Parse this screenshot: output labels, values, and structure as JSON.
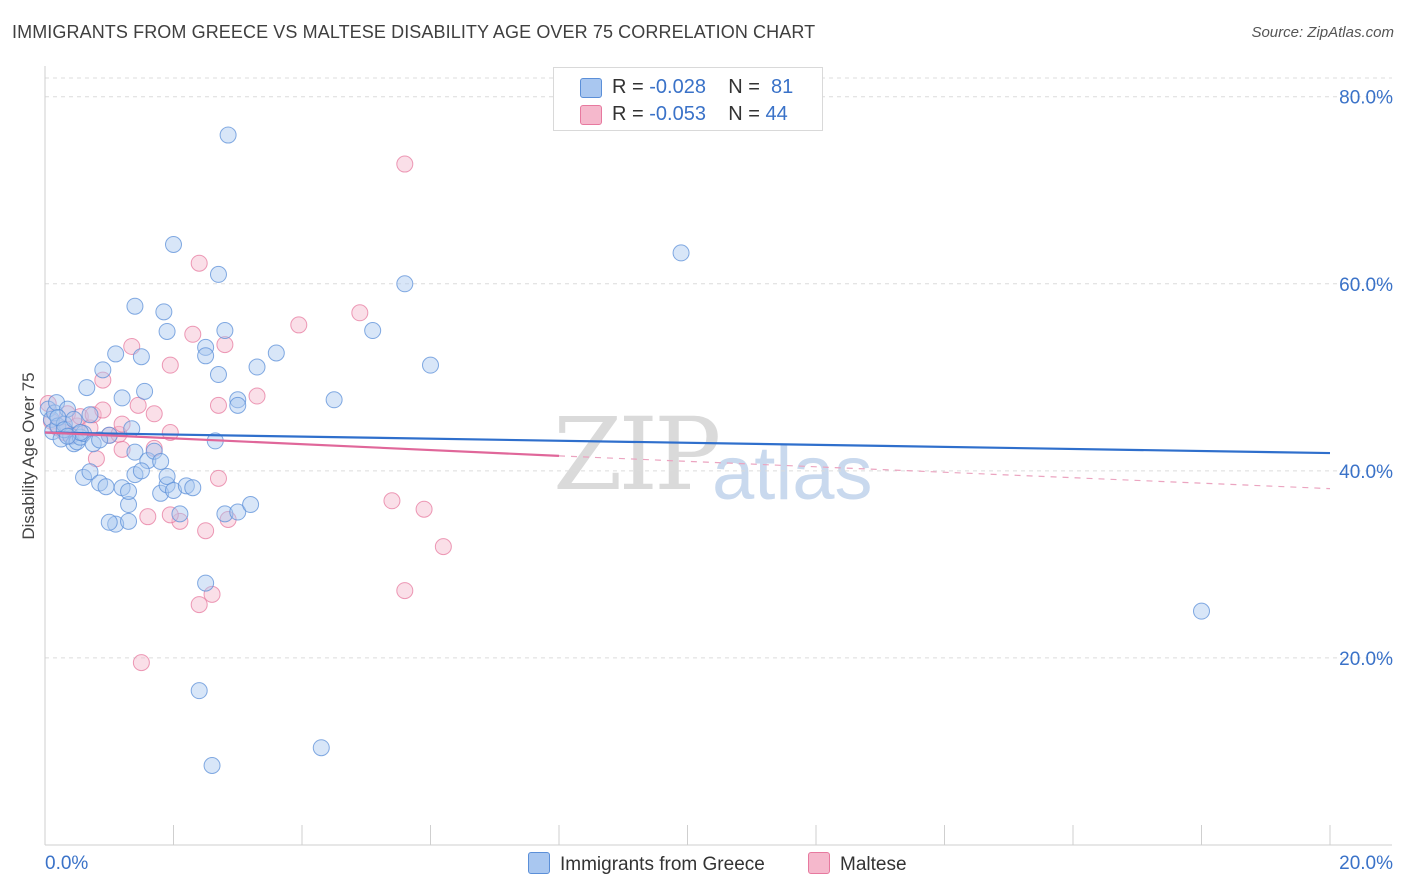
{
  "title": "IMMIGRANTS FROM GREECE VS MALTESE DISABILITY AGE OVER 75 CORRELATION CHART",
  "source": "Source: ZipAtlas.com",
  "watermark": {
    "zip": "ZIP",
    "atlas": "atlas"
  },
  "legend_top": [
    {
      "r_label": "R =",
      "r_value": "-0.028",
      "n_label": "N =",
      "n_value": "81",
      "color": "#a9c7f0"
    },
    {
      "r_label": "R =",
      "r_value": "-0.053",
      "n_label": "N =",
      "n_value": "44",
      "color": "#f5b8cc"
    }
  ],
  "chart_data": {
    "type": "scatter",
    "title": "IMMIGRANTS FROM GREECE VS MALTESE DISABILITY AGE OVER 75 CORRELATION CHART",
    "xlabel": "",
    "ylabel": "Disability Age Over 75",
    "xlim": [
      0,
      20
    ],
    "ylim": [
      0,
      82
    ],
    "x_tick_labels": [
      "0.0%",
      "20.0%"
    ],
    "y_ticks": [
      20,
      40,
      60,
      80
    ],
    "y_tick_labels": [
      "20.0%",
      "40.0%",
      "60.0%",
      "80.0%"
    ],
    "grid": true,
    "legend_position": "bottom",
    "series": [
      {
        "name": "Immigrants from Greece",
        "color": "#5b8fd8",
        "fill": "#a9c7f0",
        "trend": {
          "x": [
            0,
            20
          ],
          "y": [
            44.1,
            41.9
          ],
          "dashed_from": null
        },
        "points": [
          [
            0.05,
            46.6
          ],
          [
            0.1,
            45.5
          ],
          [
            0.12,
            44.2
          ],
          [
            0.15,
            46.2
          ],
          [
            0.18,
            47.3
          ],
          [
            0.2,
            44.8
          ],
          [
            0.25,
            43.4
          ],
          [
            0.3,
            45.0
          ],
          [
            0.35,
            46.6
          ],
          [
            0.4,
            43.7
          ],
          [
            0.45,
            42.9
          ],
          [
            0.5,
            43.1
          ],
          [
            0.55,
            43.6
          ],
          [
            0.6,
            44.0
          ],
          [
            0.7,
            46.0
          ],
          [
            0.75,
            42.9
          ],
          [
            0.9,
            50.8
          ],
          [
            0.65,
            48.9
          ],
          [
            1.1,
            52.5
          ],
          [
            1.2,
            47.8
          ],
          [
            1.35,
            44.5
          ],
          [
            1.5,
            52.2
          ],
          [
            1.55,
            48.5
          ],
          [
            1.4,
            42.0
          ],
          [
            0.6,
            39.3
          ],
          [
            0.7,
            39.9
          ],
          [
            0.85,
            38.7
          ],
          [
            0.95,
            38.3
          ],
          [
            1.2,
            38.2
          ],
          [
            1.3,
            36.4
          ],
          [
            1.3,
            37.8
          ],
          [
            1.4,
            39.6
          ],
          [
            1.1,
            34.3
          ],
          [
            1.0,
            34.5
          ],
          [
            1.3,
            34.6
          ],
          [
            1.6,
            41.1
          ],
          [
            1.7,
            42.1
          ],
          [
            1.8,
            41.0
          ],
          [
            1.8,
            37.6
          ],
          [
            1.9,
            38.5
          ],
          [
            1.9,
            39.4
          ],
          [
            2.0,
            37.9
          ],
          [
            2.1,
            35.4
          ],
          [
            2.2,
            38.4
          ],
          [
            2.3,
            38.2
          ],
          [
            1.4,
            57.6
          ],
          [
            1.85,
            57.0
          ],
          [
            1.9,
            54.9
          ],
          [
            2.0,
            64.2
          ],
          [
            2.5,
            53.2
          ],
          [
            2.5,
            52.3
          ],
          [
            2.7,
            61.0
          ],
          [
            2.8,
            55.0
          ],
          [
            2.7,
            50.3
          ],
          [
            2.65,
            43.2
          ],
          [
            2.8,
            35.4
          ],
          [
            3.0,
            47.6
          ],
          [
            3.0,
            35.6
          ],
          [
            3.2,
            36.4
          ],
          [
            3.3,
            51.1
          ],
          [
            3.6,
            52.6
          ],
          [
            3.0,
            47.0
          ],
          [
            4.5,
            47.6
          ],
          [
            5.1,
            55.0
          ],
          [
            5.6,
            60.0
          ],
          [
            6.0,
            51.3
          ],
          [
            2.85,
            75.9
          ],
          [
            2.5,
            28.0
          ],
          [
            2.4,
            16.5
          ],
          [
            2.6,
            8.5
          ],
          [
            4.3,
            10.4
          ],
          [
            9.9,
            63.3
          ],
          [
            18.0,
            25.0
          ],
          [
            0.2,
            45.7
          ],
          [
            0.3,
            44.4
          ],
          [
            0.45,
            45.5
          ],
          [
            0.55,
            44.1
          ],
          [
            1.0,
            43.8
          ],
          [
            1.5,
            40.0
          ],
          [
            0.85,
            43.3
          ],
          [
            0.35,
            43.7
          ]
        ]
      },
      {
        "name": "Maltese",
        "color": "#e7799f",
        "fill": "#f5b8cc",
        "trend": {
          "x": [
            0,
            8,
            20
          ],
          "y": [
            44.1,
            41.6,
            38.1
          ],
          "dashed_from": 8
        },
        "points": [
          [
            0.05,
            47.2
          ],
          [
            0.1,
            45.3
          ],
          [
            0.2,
            44.6
          ],
          [
            0.3,
            44.1
          ],
          [
            0.35,
            46.1
          ],
          [
            0.4,
            43.8
          ],
          [
            0.5,
            44.8
          ],
          [
            0.55,
            45.8
          ],
          [
            0.7,
            44.6
          ],
          [
            0.75,
            46.0
          ],
          [
            0.8,
            41.3
          ],
          [
            0.9,
            49.7
          ],
          [
            0.9,
            46.5
          ],
          [
            1.0,
            43.8
          ],
          [
            1.15,
            43.9
          ],
          [
            1.2,
            42.3
          ],
          [
            1.2,
            45.0
          ],
          [
            1.35,
            53.3
          ],
          [
            1.45,
            47.0
          ],
          [
            1.7,
            42.4
          ],
          [
            1.7,
            46.1
          ],
          [
            1.95,
            44.1
          ],
          [
            1.95,
            51.3
          ],
          [
            2.3,
            54.6
          ],
          [
            2.4,
            62.2
          ],
          [
            2.7,
            39.2
          ],
          [
            2.7,
            47.0
          ],
          [
            2.8,
            53.5
          ],
          [
            3.3,
            48.0
          ],
          [
            3.95,
            55.6
          ],
          [
            4.9,
            56.9
          ],
          [
            5.4,
            36.8
          ],
          [
            5.6,
            72.8
          ],
          [
            5.6,
            27.2
          ],
          [
            5.9,
            35.9
          ],
          [
            6.2,
            31.9
          ],
          [
            1.5,
            19.5
          ],
          [
            2.1,
            34.6
          ],
          [
            2.4,
            25.7
          ],
          [
            2.5,
            33.6
          ],
          [
            2.6,
            26.8
          ],
          [
            2.85,
            34.8
          ],
          [
            1.6,
            35.1
          ],
          [
            1.95,
            35.3
          ]
        ]
      }
    ]
  }
}
